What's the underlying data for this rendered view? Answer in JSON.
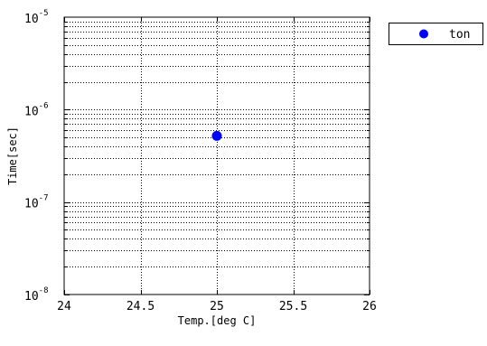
{
  "chart_data": {
    "type": "scatter",
    "title": "",
    "xlabel": "Temp.[deg C]",
    "ylabel": "Time[sec]",
    "xlim": [
      24,
      26
    ],
    "ylim": [
      1e-08,
      1e-05
    ],
    "yscale": "log",
    "grid": true,
    "legend_position": "outside-top-right",
    "x_ticks": [
      {
        "value": 24,
        "label": "24"
      },
      {
        "value": 24.5,
        "label": "24.5"
      },
      {
        "value": 25,
        "label": "25"
      },
      {
        "value": 25.5,
        "label": "25.5"
      },
      {
        "value": 26,
        "label": "26"
      }
    ],
    "y_ticks": [
      {
        "exp": -8,
        "base": "10",
        "sup": "-8"
      },
      {
        "exp": -7,
        "base": "10",
        "sup": "-7"
      },
      {
        "exp": -6,
        "base": "10",
        "sup": "-6"
      },
      {
        "exp": -5,
        "base": "10",
        "sup": "-5"
      }
    ],
    "series": [
      {
        "name": "ton",
        "color": "#0000ff",
        "marker": "circle",
        "points": [
          {
            "x": 25,
            "y": 5.2e-07
          }
        ]
      }
    ]
  }
}
